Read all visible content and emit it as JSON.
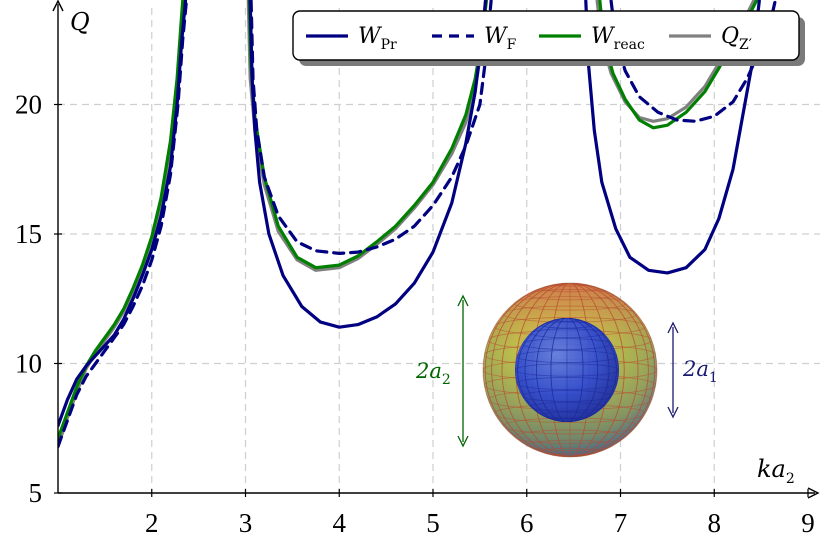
{
  "chart_data": {
    "type": "line",
    "xlabel": "ka2",
    "ylabel": "Q",
    "xlim": [
      1,
      9
    ],
    "ylim": [
      5,
      24
    ],
    "xticks": [
      2,
      3,
      4,
      5,
      6,
      7,
      8,
      9
    ],
    "yticks": [
      5,
      10,
      15,
      20
    ],
    "grid": true,
    "legend_position": "top-right",
    "series": [
      {
        "name": "W_Pr",
        "legend_main": "W",
        "legend_sub": "Pr",
        "color": "#000080",
        "dash": "solid",
        "segments": [
          [
            [
              1.0,
              7.6
            ],
            [
              1.1,
              8.6
            ],
            [
              1.2,
              9.4
            ],
            [
              1.3,
              9.9
            ],
            [
              1.4,
              10.3
            ],
            [
              1.5,
              10.7
            ],
            [
              1.6,
              11.1
            ],
            [
              1.7,
              11.7
            ],
            [
              1.8,
              12.5
            ],
            [
              1.9,
              13.4
            ],
            [
              2.0,
              14.4
            ],
            [
              2.1,
              15.7
            ],
            [
              2.2,
              17.6
            ],
            [
              2.27,
              20.0
            ],
            [
              2.32,
              22.5
            ],
            [
              2.36,
              24.0
            ]
          ],
          [
            [
              3.05,
              24.0
            ],
            [
              3.07,
              21.0
            ],
            [
              3.1,
              19.0
            ],
            [
              3.15,
              17.0
            ],
            [
              3.25,
              15.0
            ],
            [
              3.4,
              13.4
            ],
            [
              3.6,
              12.2
            ],
            [
              3.8,
              11.6
            ],
            [
              4.0,
              11.4
            ],
            [
              4.2,
              11.5
            ],
            [
              4.4,
              11.8
            ],
            [
              4.6,
              12.3
            ],
            [
              4.8,
              13.1
            ],
            [
              5.0,
              14.3
            ],
            [
              5.2,
              16.2
            ],
            [
              5.35,
              18.5
            ],
            [
              5.45,
              20.5
            ],
            [
              5.52,
              22.5
            ],
            [
              5.56,
              24.0
            ]
          ],
          [
            [
              6.63,
              24.0
            ],
            [
              6.66,
              21.5
            ],
            [
              6.72,
              19.0
            ],
            [
              6.8,
              17.0
            ],
            [
              6.95,
              15.2
            ],
            [
              7.1,
              14.1
            ],
            [
              7.3,
              13.6
            ],
            [
              7.5,
              13.5
            ],
            [
              7.7,
              13.7
            ],
            [
              7.9,
              14.4
            ],
            [
              8.05,
              15.6
            ],
            [
              8.2,
              17.5
            ],
            [
              8.3,
              19.5
            ],
            [
              8.4,
              21.5
            ],
            [
              8.48,
              24.0
            ]
          ]
        ]
      },
      {
        "name": "W_F",
        "legend_main": "W",
        "legend_sub": "F",
        "color": "#000080",
        "dash": "dashed",
        "segments": [
          [
            [
              1.0,
              6.8
            ],
            [
              1.1,
              7.8
            ],
            [
              1.2,
              8.8
            ],
            [
              1.3,
              9.5
            ],
            [
              1.4,
              10.0
            ],
            [
              1.5,
              10.5
            ],
            [
              1.6,
              11.0
            ],
            [
              1.7,
              11.5
            ],
            [
              1.8,
              12.2
            ],
            [
              1.9,
              13.0
            ],
            [
              2.0,
              14.0
            ],
            [
              2.1,
              15.3
            ],
            [
              2.2,
              17.3
            ],
            [
              2.28,
              20.0
            ],
            [
              2.33,
              22.5
            ],
            [
              2.37,
              24.0
            ]
          ],
          [
            [
              3.06,
              24.0
            ],
            [
              3.08,
              21.0
            ],
            [
              3.12,
              19.0
            ],
            [
              3.2,
              17.2
            ],
            [
              3.35,
              15.7
            ],
            [
              3.55,
              14.7
            ],
            [
              3.75,
              14.35
            ],
            [
              4.0,
              14.25
            ],
            [
              4.2,
              14.3
            ],
            [
              4.4,
              14.5
            ],
            [
              4.6,
              14.8
            ],
            [
              4.8,
              15.3
            ],
            [
              5.0,
              16.1
            ],
            [
              5.2,
              17.2
            ],
            [
              5.35,
              18.4
            ],
            [
              5.5,
              20.0
            ],
            [
              5.57,
              22.0
            ],
            [
              5.62,
              24.0
            ]
          ],
          [
            [
              6.9,
              24.0
            ],
            [
              6.95,
              22.5
            ],
            [
              7.05,
              21.3
            ],
            [
              7.2,
              20.3
            ],
            [
              7.4,
              19.7
            ],
            [
              7.6,
              19.4
            ],
            [
              7.8,
              19.35
            ],
            [
              8.0,
              19.55
            ],
            [
              8.2,
              20.1
            ],
            [
              8.35,
              21.0
            ],
            [
              8.5,
              22.2
            ],
            [
              8.6,
              23.2
            ],
            [
              8.65,
              24.0
            ]
          ]
        ]
      },
      {
        "name": "W_reac",
        "legend_main": "W",
        "legend_sub": "reac",
        "color": "#008000",
        "dash": "solid",
        "segments": [
          [
            [
              1.0,
              7.1
            ],
            [
              1.1,
              8.1
            ],
            [
              1.2,
              9.1
            ],
            [
              1.3,
              9.9
            ],
            [
              1.4,
              10.5
            ],
            [
              1.5,
              11.0
            ],
            [
              1.6,
              11.5
            ],
            [
              1.7,
              12.1
            ],
            [
              1.8,
              12.9
            ],
            [
              1.9,
              13.8
            ],
            [
              2.0,
              14.9
            ],
            [
              2.1,
              16.4
            ],
            [
              2.2,
              18.6
            ],
            [
              2.27,
              21.0
            ],
            [
              2.31,
              23.0
            ],
            [
              2.33,
              24.0
            ]
          ],
          [
            [
              3.04,
              24.0
            ],
            [
              3.06,
              21.5
            ],
            [
              3.1,
              19.5
            ],
            [
              3.2,
              17.2
            ],
            [
              3.35,
              15.3
            ],
            [
              3.55,
              14.1
            ],
            [
              3.75,
              13.7
            ],
            [
              4.0,
              13.8
            ],
            [
              4.2,
              14.15
            ],
            [
              4.4,
              14.7
            ],
            [
              4.6,
              15.3
            ],
            [
              4.8,
              16.1
            ],
            [
              5.0,
              17.0
            ],
            [
              5.2,
              18.3
            ],
            [
              5.35,
              19.6
            ],
            [
              5.45,
              21.0
            ],
            [
              5.52,
              22.5
            ],
            [
              5.57,
              24.0
            ]
          ],
          [
            [
              6.78,
              24.0
            ],
            [
              6.82,
              22.5
            ],
            [
              6.92,
              21.2
            ],
            [
              7.05,
              20.2
            ],
            [
              7.2,
              19.4
            ],
            [
              7.35,
              19.1
            ],
            [
              7.5,
              19.2
            ],
            [
              7.7,
              19.7
            ],
            [
              7.9,
              20.5
            ],
            [
              8.05,
              21.4
            ],
            [
              8.2,
              22.4
            ],
            [
              8.35,
              23.3
            ],
            [
              8.45,
              24.0
            ]
          ]
        ]
      },
      {
        "name": "Q_Z'",
        "legend_main": "Q",
        "legend_sub": "Z′",
        "color": "#808080",
        "dash": "solid",
        "segments": [
          [
            [
              1.0,
              6.8
            ],
            [
              1.1,
              7.9
            ],
            [
              1.2,
              8.9
            ],
            [
              1.3,
              9.8
            ],
            [
              1.4,
              10.4
            ],
            [
              1.5,
              10.9
            ],
            [
              1.6,
              11.4
            ],
            [
              1.7,
              12.0
            ],
            [
              1.8,
              12.7
            ],
            [
              1.9,
              13.6
            ],
            [
              2.0,
              14.7
            ],
            [
              2.1,
              16.1
            ],
            [
              2.2,
              18.3
            ],
            [
              2.27,
              20.7
            ],
            [
              2.32,
              23.0
            ],
            [
              2.35,
              24.0
            ]
          ],
          [
            [
              3.03,
              24.0
            ],
            [
              3.05,
              21.0
            ],
            [
              3.1,
              19.0
            ],
            [
              3.2,
              16.9
            ],
            [
              3.35,
              15.1
            ],
            [
              3.55,
              14.0
            ],
            [
              3.75,
              13.6
            ],
            [
              4.0,
              13.7
            ],
            [
              4.2,
              14.05
            ],
            [
              4.4,
              14.6
            ],
            [
              4.6,
              15.2
            ],
            [
              4.8,
              16.0
            ],
            [
              5.0,
              16.9
            ],
            [
              5.2,
              18.1
            ],
            [
              5.35,
              19.3
            ],
            [
              5.45,
              20.6
            ],
            [
              5.52,
              22.2
            ],
            [
              5.56,
              24.0
            ]
          ],
          [
            [
              6.75,
              24.0
            ],
            [
              6.8,
              22.5
            ],
            [
              6.9,
              21.2
            ],
            [
              7.05,
              20.1
            ],
            [
              7.2,
              19.5
            ],
            [
              7.35,
              19.35
            ],
            [
              7.5,
              19.45
            ],
            [
              7.7,
              19.9
            ],
            [
              7.9,
              20.7
            ],
            [
              8.05,
              21.6
            ],
            [
              8.2,
              22.6
            ],
            [
              8.35,
              23.5
            ],
            [
              8.42,
              24.0
            ]
          ]
        ]
      }
    ],
    "annotations": {
      "outer": "2a2",
      "outer_main": "2a",
      "outer_sub": "2",
      "inner": "2a1",
      "inner_main": "2a",
      "inner_sub": "1"
    }
  }
}
